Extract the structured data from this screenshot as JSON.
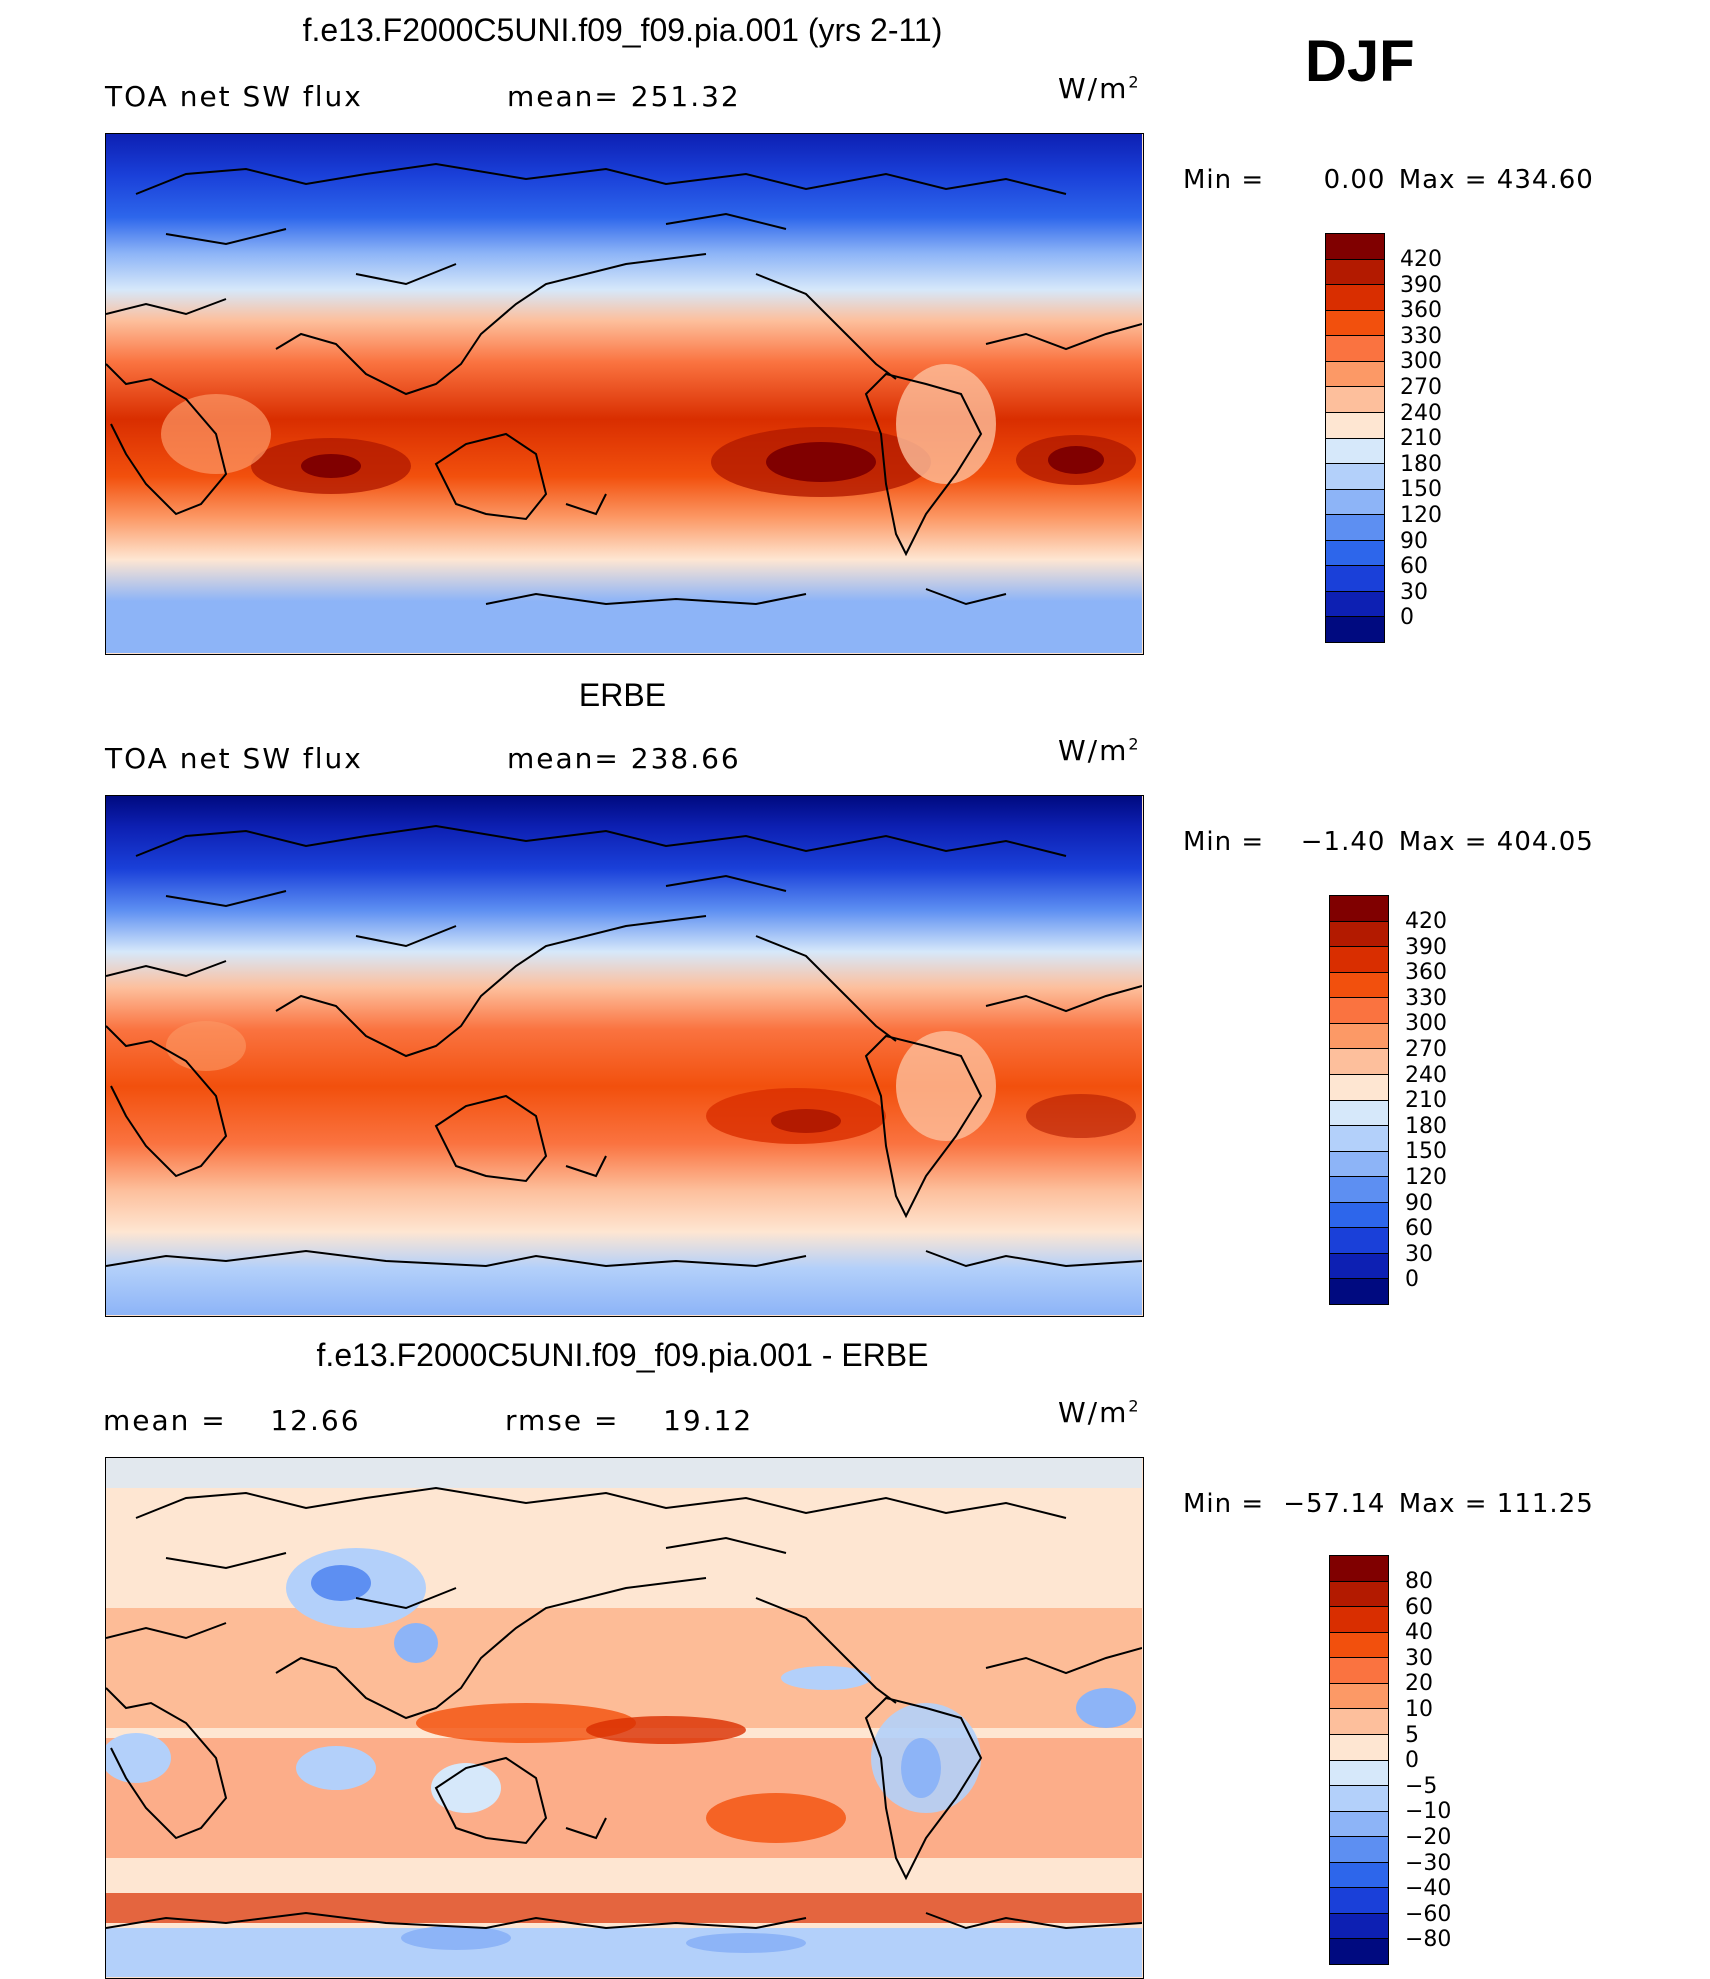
{
  "season": "DJF",
  "panels": [
    {
      "title": "f.e13.F2000C5UNI.f09_f09.pia.001 (yrs 2-11)",
      "variable": "TOA net SW flux",
      "stat1": "mean= 251.32",
      "stat2": "",
      "units": "W/m",
      "units_sup": "2",
      "min_label": "Min =",
      "min_value": "0.00",
      "max_label": "Max =",
      "max_value": "434.60",
      "levels": [
        "420",
        "390",
        "360",
        "330",
        "300",
        "270",
        "240",
        "210",
        "180",
        "150",
        "120",
        "90",
        "60",
        "30",
        "0"
      ],
      "colors": [
        "#800000",
        "#b31a00",
        "#d92e00",
        "#f2500d",
        "#fa7340",
        "#fc9966",
        "#fdbf9c",
        "#fee6d2",
        "#d6e8fa",
        "#b3d0fa",
        "#8db4f7",
        "#5d8ff2",
        "#2d66eb",
        "#1a40d9",
        "#0d20b3",
        "#000a80"
      ]
    },
    {
      "title": "ERBE",
      "variable": "TOA net SW flux",
      "stat1": "mean= 238.66",
      "stat2": "",
      "units": "W/m",
      "units_sup": "2",
      "min_label": "Min =",
      "min_value": "−1.40",
      "max_label": "Max =",
      "max_value": "404.05",
      "levels": [
        "420",
        "390",
        "360",
        "330",
        "300",
        "270",
        "240",
        "210",
        "180",
        "150",
        "120",
        "90",
        "60",
        "30",
        "0"
      ],
      "colors": [
        "#800000",
        "#b31a00",
        "#d92e00",
        "#f2500d",
        "#fa7340",
        "#fc9966",
        "#fdbf9c",
        "#fee6d2",
        "#d6e8fa",
        "#b3d0fa",
        "#8db4f7",
        "#5d8ff2",
        "#2d66eb",
        "#1a40d9",
        "#0d20b3",
        "#000a80"
      ]
    },
    {
      "title": "f.e13.F2000C5UNI.f09_f09.pia.001 - ERBE",
      "variable": "",
      "stat1": "mean =    12.66",
      "stat2": "rmse =    19.12",
      "units": "W/m",
      "units_sup": "2",
      "min_label": "Min =",
      "min_value": "−57.14",
      "max_label": "Max =",
      "max_value": "111.25",
      "levels": [
        "80",
        "60",
        "40",
        "30",
        "20",
        "10",
        "5",
        "0",
        "−5",
        "−10",
        "−20",
        "−30",
        "−40",
        "−60",
        "−80"
      ],
      "colors": [
        "#800000",
        "#b31a00",
        "#d92e00",
        "#f2500d",
        "#fa7340",
        "#fc9966",
        "#fdbf9c",
        "#fee6d2",
        "#d6e8fa",
        "#b3d0fa",
        "#8db4f7",
        "#5d8ff2",
        "#2d66eb",
        "#1a40d9",
        "#0d20b3",
        "#000a80"
      ]
    }
  ]
}
